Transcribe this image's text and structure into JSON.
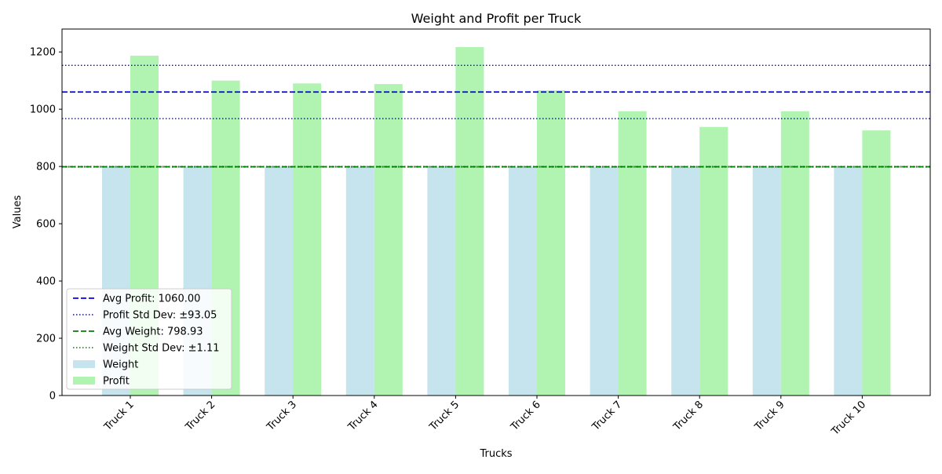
{
  "chart_data": {
    "type": "bar",
    "title": "Weight and Profit per Truck",
    "xlabel": "Trucks",
    "ylabel": "Values",
    "ylim": [
      0,
      1280
    ],
    "yticks": [
      0,
      200,
      400,
      600,
      800,
      1000,
      1200
    ],
    "categories": [
      "Truck 1",
      "Truck 2",
      "Truck 3",
      "Truck 4",
      "Truck 5",
      "Truck 6",
      "Truck 7",
      "Truck 8",
      "Truck 9",
      "Truck 10"
    ],
    "series": [
      {
        "name": "Weight",
        "color": "#add8e6",
        "values": [
          800,
          800,
          799,
          799,
          799,
          799,
          798,
          798,
          798,
          799
        ]
      },
      {
        "name": "Profit",
        "color": "#90ee90",
        "values": [
          1187,
          1100,
          1090,
          1088,
          1217,
          1066,
          993,
          938,
          993,
          926
        ]
      }
    ],
    "reference_lines": [
      {
        "label": "Avg Profit: 1060.00",
        "value": 1060.0,
        "color": "#0000ff",
        "style": "dashed"
      },
      {
        "label": "Profit Std Dev: ±93.05",
        "values": [
          966.95,
          1153.05
        ],
        "color": "#0000ff",
        "style": "dotted"
      },
      {
        "label": "Avg Weight: 798.93",
        "value": 798.93,
        "color": "#008000",
        "style": "dashed"
      },
      {
        "label": "Weight Std Dev: ±1.11",
        "values": [
          797.82,
          800.04
        ],
        "color": "#008000",
        "style": "dotted"
      }
    ],
    "legend_position": "lower-left",
    "grid": false
  }
}
